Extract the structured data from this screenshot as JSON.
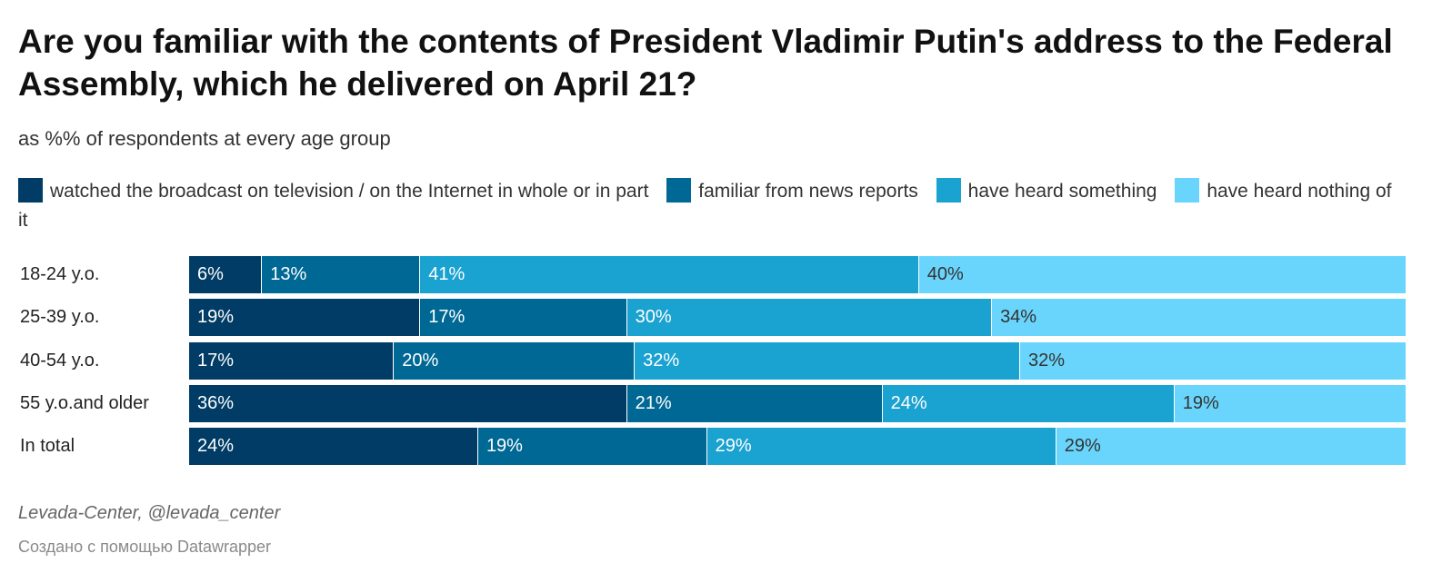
{
  "chart_data": {
    "type": "bar",
    "orientation": "horizontal",
    "stacked": true,
    "title": "Are you familiar with the contents of President Vladimir Putin's address to the Federal Assembly, which he delivered on April 21?",
    "subtitle": "as %% of respondents at every age group",
    "categories": [
      "18-24 y.o.",
      "25-39 y.o.",
      "40-54 y.o.",
      "55 y.o.and older",
      "In total"
    ],
    "series": [
      {
        "name": "watched the broadcast on television / on the Internet in whole or in part",
        "color": "#003c65",
        "text_color": "#ffffff",
        "values": [
          6,
          19,
          17,
          36,
          24
        ]
      },
      {
        "name": "familiar from news reports",
        "color": "#006895",
        "text_color": "#ffffff",
        "values": [
          13,
          17,
          20,
          21,
          19
        ]
      },
      {
        "name": "have heard something",
        "color": "#1aa2d0",
        "text_color": "#ffffff",
        "values": [
          41,
          30,
          32,
          24,
          29
        ]
      },
      {
        "name": "have heard nothing of it",
        "color": "#6ad5fc",
        "text_color": "#333333",
        "values": [
          40,
          34,
          32,
          19,
          29
        ]
      }
    ],
    "value_suffix": "%",
    "legend_position": "top",
    "grid": false
  },
  "footer": {
    "source": "Levada-Center, @levada_center",
    "credit": "Создано с помощью Datawrapper"
  }
}
